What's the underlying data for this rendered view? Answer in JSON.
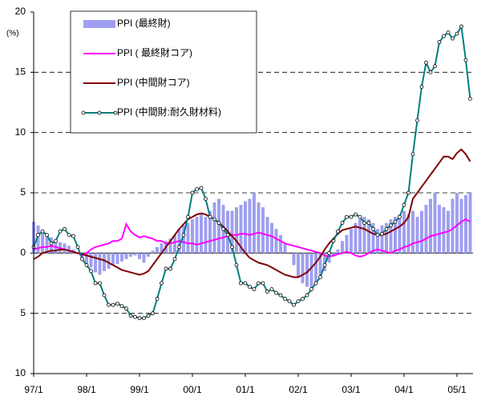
{
  "chart_data": {
    "type": "line",
    "y_unit_label": "(%)",
    "categories": [
      "97/1",
      null,
      null,
      null,
      null,
      null,
      null,
      null,
      null,
      null,
      null,
      null,
      "98/1",
      null,
      null,
      null,
      null,
      null,
      null,
      null,
      null,
      null,
      null,
      null,
      "99/1",
      null,
      null,
      null,
      null,
      null,
      null,
      null,
      null,
      null,
      null,
      null,
      "00/1",
      null,
      null,
      null,
      null,
      null,
      null,
      null,
      null,
      null,
      null,
      null,
      "01/1",
      null,
      null,
      null,
      null,
      null,
      null,
      null,
      null,
      null,
      null,
      null,
      "02/1",
      null,
      null,
      null,
      null,
      null,
      null,
      null,
      null,
      null,
      null,
      null,
      "03/1",
      null,
      null,
      null,
      null,
      null,
      null,
      null,
      null,
      null,
      null,
      null,
      "04/1",
      null,
      null,
      null,
      null,
      null,
      null,
      null,
      null,
      null,
      null,
      null,
      "05/1",
      null,
      null,
      null
    ],
    "ylim": [
      -10,
      20
    ],
    "yticks": [
      {
        "value": -10,
        "label": "10"
      },
      {
        "value": -5,
        "label": "5"
      },
      0,
      5,
      10,
      15,
      20
    ],
    "grid": true,
    "legend": "upper left",
    "series": [
      {
        "name": "PPI (最終財)",
        "type": "bar",
        "color": "#9f9ff0",
        "values": [
          2.6,
          2.3,
          1.8,
          1.5,
          1.3,
          1.0,
          0.9,
          0.8,
          0.6,
          0.3,
          0.0,
          -0.5,
          -0.9,
          -1.2,
          -1.6,
          -1.8,
          -1.5,
          -1.3,
          -1.0,
          -0.9,
          -0.7,
          -0.5,
          -0.3,
          -0.2,
          -0.5,
          -0.8,
          -0.3,
          0.2,
          0.5,
          0.8,
          1.0,
          1.2,
          1.5,
          2.0,
          2.3,
          2.5,
          2.8,
          3.0,
          3.3,
          3.0,
          3.5,
          4.2,
          4.5,
          4.0,
          3.5,
          3.5,
          3.8,
          4.0,
          4.3,
          4.5,
          5.0,
          4.2,
          3.8,
          3.0,
          2.5,
          2.0,
          1.5,
          0.8,
          0.0,
          -1.0,
          -2.0,
          -2.5,
          -2.8,
          -3.0,
          -2.5,
          -2.0,
          -1.5,
          -0.8,
          -0.3,
          0.3,
          1.0,
          1.5,
          2.0,
          2.5,
          2.8,
          3.0,
          2.8,
          2.5,
          2.0,
          2.3,
          2.5,
          2.8,
          3.0,
          3.2,
          3.5,
          3.2,
          3.5,
          3.0,
          3.5,
          4.0,
          4.5,
          5.0,
          4.0,
          3.8,
          3.5,
          4.5,
          5.0,
          4.5,
          4.8,
          5.0
        ]
      },
      {
        "name": "PPI ( 最終財コア)",
        "type": "line",
        "color": "#ff00ff",
        "values": [
          0.3,
          0.4,
          0.5,
          0.5,
          0.6,
          0.5,
          0.4,
          0.3,
          0.2,
          0.1,
          0.0,
          -0.2,
          0.0,
          0.3,
          0.5,
          0.6,
          0.7,
          0.8,
          1.0,
          1.0,
          1.2,
          2.4,
          1.8,
          1.5,
          1.3,
          1.4,
          1.3,
          1.2,
          1.0,
          1.0,
          0.8,
          0.8,
          0.9,
          1.0,
          0.9,
          0.8,
          0.8,
          0.7,
          0.8,
          0.9,
          1.0,
          1.1,
          1.2,
          1.3,
          1.4,
          1.5,
          1.5,
          1.6,
          1.6,
          1.5,
          1.6,
          1.7,
          1.6,
          1.5,
          1.4,
          1.2,
          1.0,
          0.8,
          0.7,
          0.6,
          0.5,
          0.4,
          0.3,
          0.2,
          0.1,
          0.0,
          -0.2,
          -0.3,
          -0.2,
          -0.1,
          0.0,
          0.1,
          0.0,
          -0.2,
          -0.3,
          -0.2,
          0.0,
          0.2,
          0.3,
          0.2,
          0.1,
          0.0,
          0.2,
          0.3,
          0.5,
          0.6,
          0.8,
          0.9,
          1.0,
          1.2,
          1.4,
          1.5,
          1.6,
          1.7,
          1.8,
          2.0,
          2.3,
          2.6,
          2.8,
          2.6
        ]
      },
      {
        "name": "PPI (中間財コア)",
        "type": "line",
        "color": "#800000",
        "values": [
          -0.5,
          -0.3,
          0.0,
          0.1,
          0.2,
          0.2,
          0.3,
          0.3,
          0.2,
          0.1,
          0.0,
          -0.1,
          -0.2,
          -0.3,
          -0.4,
          -0.5,
          -0.6,
          -0.8,
          -1.0,
          -1.2,
          -1.4,
          -1.5,
          -1.6,
          -1.7,
          -1.8,
          -1.7,
          -1.5,
          -1.0,
          -0.5,
          0.0,
          0.5,
          1.0,
          1.5,
          2.0,
          2.4,
          2.8,
          3.0,
          3.2,
          3.3,
          3.2,
          3.0,
          2.8,
          2.5,
          2.2,
          1.8,
          1.4,
          1.0,
          0.5,
          0.0,
          -0.4,
          -0.6,
          -0.8,
          -0.9,
          -1.0,
          -1.2,
          -1.4,
          -1.6,
          -1.8,
          -1.9,
          -2.0,
          -2.0,
          -1.8,
          -1.6,
          -1.2,
          -0.8,
          -0.3,
          0.3,
          0.8,
          1.2,
          1.6,
          1.9,
          2.0,
          2.1,
          2.2,
          2.1,
          2.0,
          1.8,
          1.6,
          1.5,
          1.5,
          1.6,
          1.8,
          2.0,
          2.2,
          2.5,
          3.0,
          4.5,
          5.0,
          5.5,
          6.0,
          6.5,
          7.0,
          7.5,
          8.0,
          8.0,
          7.8,
          8.3,
          8.6,
          8.2,
          7.6
        ]
      },
      {
        "name": "PPI (中間財:耐久財材料)",
        "type": "line",
        "marker": true,
        "color": "#008080",
        "values": [
          0.5,
          1.5,
          1.8,
          1.5,
          0.8,
          1.0,
          1.8,
          2.0,
          1.5,
          1.4,
          0.5,
          -0.5,
          -1.0,
          -1.5,
          -2.5,
          -2.5,
          -3.5,
          -4.3,
          -4.3,
          -4.2,
          -4.4,
          -4.6,
          -5.2,
          -5.3,
          -5.4,
          -5.4,
          -5.2,
          -5.0,
          -3.8,
          -2.5,
          -1.3,
          -1.3,
          -0.5,
          0.5,
          1.5,
          3.0,
          5.0,
          5.3,
          5.4,
          4.5,
          3.0,
          2.8,
          2.5,
          2.0,
          1.5,
          0.5,
          -1.0,
          -2.5,
          -2.5,
          -2.8,
          -3.0,
          -2.5,
          -2.5,
          -3.2,
          -3.0,
          -3.3,
          -3.5,
          -3.8,
          -4.0,
          -4.3,
          -4.0,
          -3.8,
          -3.5,
          -3.0,
          -2.5,
          -2.0,
          -1.0,
          0.0,
          1.0,
          1.8,
          2.5,
          3.0,
          3.0,
          3.2,
          3.0,
          2.5,
          2.5,
          2.0,
          1.5,
          1.6,
          2.0,
          2.3,
          2.6,
          3.0,
          4.0,
          5.0,
          8.2,
          11.0,
          13.8,
          15.8,
          15.0,
          15.5,
          17.5,
          18.0,
          18.3,
          17.8,
          18.2,
          18.8,
          16.0,
          12.8
        ]
      }
    ]
  }
}
